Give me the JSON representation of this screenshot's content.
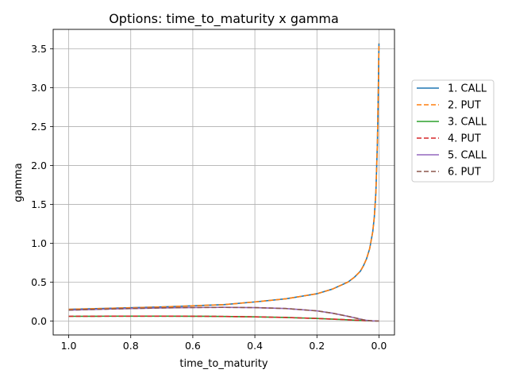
{
  "chart_data": {
    "type": "line",
    "title": "Options: time_to_maturity x gamma",
    "xlabel": "time_to_maturity",
    "ylabel": "gamma",
    "xlim": [
      1.05,
      -0.05
    ],
    "ylim": [
      -0.18,
      3.75
    ],
    "x_inverted": true,
    "grid": true,
    "legend_position": "right",
    "xticks": [
      1.0,
      0.8,
      0.6,
      0.4,
      0.2,
      0.0
    ],
    "xtick_labels": [
      "1.0",
      "0.8",
      "0.6",
      "0.4",
      "0.2",
      "0.0"
    ],
    "yticks": [
      0.0,
      0.5,
      1.0,
      1.5,
      2.0,
      2.5,
      3.0,
      3.5
    ],
    "ytick_labels": [
      "0.0",
      "0.5",
      "1.0",
      "1.5",
      "2.0",
      "2.5",
      "3.0",
      "3.5"
    ],
    "x": [
      1.0,
      0.9,
      0.8,
      0.7,
      0.6,
      0.5,
      0.4,
      0.3,
      0.2,
      0.15,
      0.1,
      0.08,
      0.06,
      0.05,
      0.04,
      0.03,
      0.02,
      0.015,
      0.01,
      0.005,
      0.002,
      0.0
    ],
    "series": [
      {
        "name": "1. CALL",
        "color": "#1f77b4",
        "dash": "solid",
        "values": [
          0.15,
          0.16,
          0.17,
          0.18,
          0.195,
          0.21,
          0.245,
          0.285,
          0.35,
          0.41,
          0.5,
          0.56,
          0.64,
          0.71,
          0.8,
          0.93,
          1.15,
          1.34,
          1.65,
          2.3,
          3.0,
          3.57
        ]
      },
      {
        "name": "2. PUT",
        "color": "#ff7f0e",
        "dash": "dashed",
        "values": [
          0.15,
          0.16,
          0.17,
          0.18,
          0.195,
          0.21,
          0.245,
          0.285,
          0.35,
          0.41,
          0.5,
          0.56,
          0.64,
          0.71,
          0.8,
          0.93,
          1.15,
          1.34,
          1.65,
          2.3,
          3.0,
          3.57
        ]
      },
      {
        "name": "3. CALL",
        "color": "#2ca02c",
        "dash": "solid",
        "values": [
          0.06,
          0.061,
          0.062,
          0.062,
          0.061,
          0.058,
          0.053,
          0.045,
          0.032,
          0.024,
          0.015,
          0.011,
          0.007,
          0.005,
          0.003,
          0.002,
          0.001,
          0.0005,
          0.0002,
          0.0,
          0.0,
          0.0
        ]
      },
      {
        "name": "4. PUT",
        "color": "#d62728",
        "dash": "dashed",
        "values": [
          0.06,
          0.061,
          0.062,
          0.062,
          0.061,
          0.058,
          0.053,
          0.045,
          0.032,
          0.024,
          0.015,
          0.011,
          0.007,
          0.005,
          0.003,
          0.002,
          0.001,
          0.0005,
          0.0002,
          0.0,
          0.0,
          0.0
        ]
      },
      {
        "name": "5. CALL",
        "color": "#9467bd",
        "dash": "solid",
        "values": [
          0.14,
          0.15,
          0.16,
          0.168,
          0.173,
          0.175,
          0.172,
          0.16,
          0.13,
          0.1,
          0.06,
          0.042,
          0.024,
          0.015,
          0.008,
          0.004,
          0.001,
          0.0005,
          0.0,
          0.0,
          0.0,
          0.0
        ]
      },
      {
        "name": "6. PUT",
        "color": "#8c564b",
        "dash": "dashed",
        "values": [
          0.14,
          0.15,
          0.16,
          0.168,
          0.173,
          0.175,
          0.172,
          0.16,
          0.13,
          0.1,
          0.06,
          0.042,
          0.024,
          0.015,
          0.008,
          0.004,
          0.001,
          0.0005,
          0.0,
          0.0,
          0.0,
          0.0
        ]
      }
    ]
  }
}
